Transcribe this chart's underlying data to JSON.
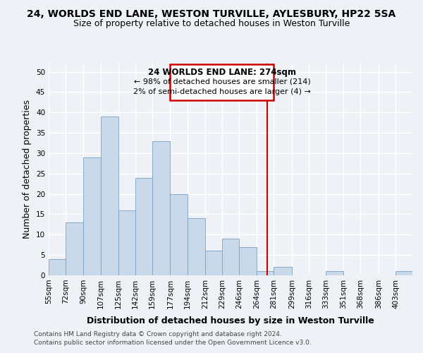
{
  "title": "24, WORLDS END LANE, WESTON TURVILLE, AYLESBURY, HP22 5SA",
  "subtitle": "Size of property relative to detached houses in Weston Turville",
  "xlabel": "Distribution of detached houses by size in Weston Turville",
  "ylabel": "Number of detached properties",
  "footer_line1": "Contains HM Land Registry data © Crown copyright and database right 2024.",
  "footer_line2": "Contains public sector information licensed under the Open Government Licence v3.0.",
  "annotation_title": "24 WORLDS END LANE: 274sqm",
  "annotation_line1": "← 98% of detached houses are smaller (214)",
  "annotation_line2": "2% of semi-detached houses are larger (4) →",
  "bar_color": "#c9d9ea",
  "bar_edge_color": "#7aa0be",
  "vline_x": 274,
  "vline_color": "#cc0000",
  "categories": [
    "55sqm",
    "72sqm",
    "90sqm",
    "107sqm",
    "125sqm",
    "142sqm",
    "159sqm",
    "177sqm",
    "194sqm",
    "212sqm",
    "229sqm",
    "246sqm",
    "264sqm",
    "281sqm",
    "299sqm",
    "316sqm",
    "333sqm",
    "351sqm",
    "368sqm",
    "386sqm",
    "403sqm"
  ],
  "bin_edges": [
    55,
    72,
    90,
    107,
    125,
    142,
    159,
    177,
    194,
    212,
    229,
    246,
    264,
    281,
    299,
    316,
    333,
    351,
    368,
    386,
    403,
    420
  ],
  "values": [
    4,
    13,
    29,
    39,
    16,
    24,
    33,
    20,
    14,
    6,
    9,
    7,
    1,
    2,
    0,
    0,
    1,
    0,
    0,
    0,
    1
  ],
  "ylim": [
    0,
    52
  ],
  "yticks": [
    0,
    5,
    10,
    15,
    20,
    25,
    30,
    35,
    40,
    45,
    50
  ],
  "background_color": "#eef2f7",
  "grid_color": "#ffffff",
  "title_fontsize": 10,
  "subtitle_fontsize": 9,
  "ylabel_fontsize": 9,
  "xlabel_fontsize": 9,
  "tick_fontsize": 7.5,
  "footer_fontsize": 6.5
}
